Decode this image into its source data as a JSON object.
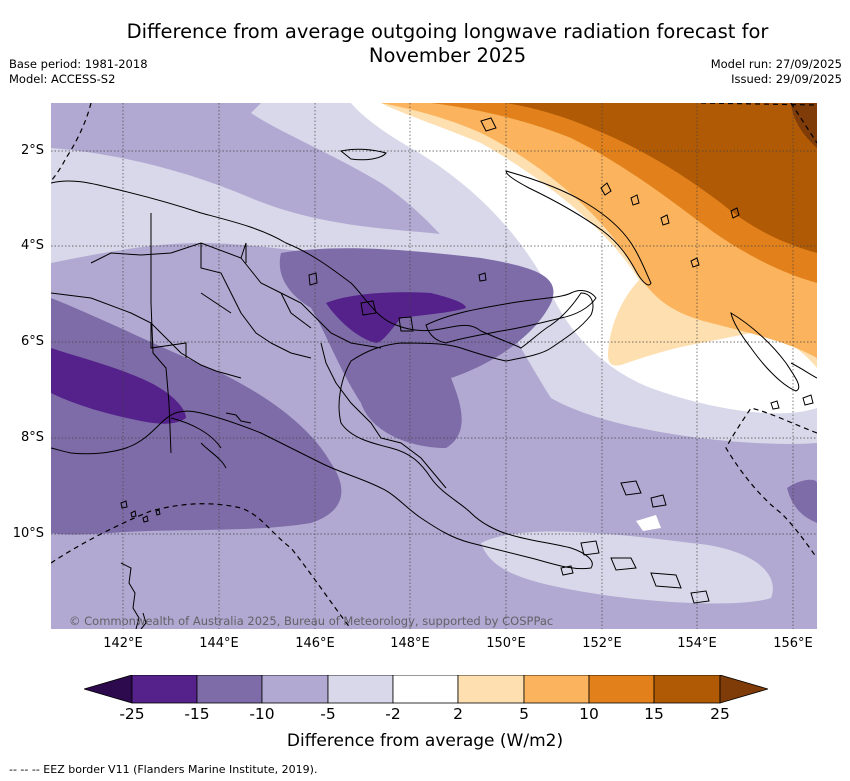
{
  "title_line1": "Difference from average outgoing longwave radiation forecast for",
  "title_line2": "November 2025",
  "meta_left": {
    "base_period": "Base period: 1981-2018",
    "model": "Model: ACCESS-S2"
  },
  "meta_right": {
    "model_run": "Model run: 27/09/2025",
    "issued": "Issued: 29/09/2025"
  },
  "latitude_labels": [
    "2°S",
    "4°S",
    "6°S",
    "8°S",
    "10°S"
  ],
  "longitude_labels": [
    "142°E",
    "144°E",
    "146°E",
    "148°E",
    "150°E",
    "152°E",
    "154°E",
    "156°E"
  ],
  "copyright": "© Commonwealth of Australia 2025, Bureau of Meteorology, supported by COSPPac",
  "colorbar": {
    "ticks": [
      "-25",
      "-15",
      "-10",
      "-5",
      "-2",
      "2",
      "5",
      "10",
      "15",
      "25"
    ],
    "title": "Difference from average (W/m2)",
    "colors": {
      "under": "#2d0a4e",
      "c1": "#54228a",
      "c2": "#7e6ca8",
      "c3": "#b1a9d1",
      "c4": "#d8d8ea",
      "c5": "#ffffff",
      "c6": "#fedfb0",
      "c7": "#fbb45d",
      "c8": "#e2811b",
      "c9": "#b05a06",
      "over": "#7f3b08"
    }
  },
  "footer": "--  --  -- EEZ border V11 (Flanders Marine Institute, 2019)."
}
